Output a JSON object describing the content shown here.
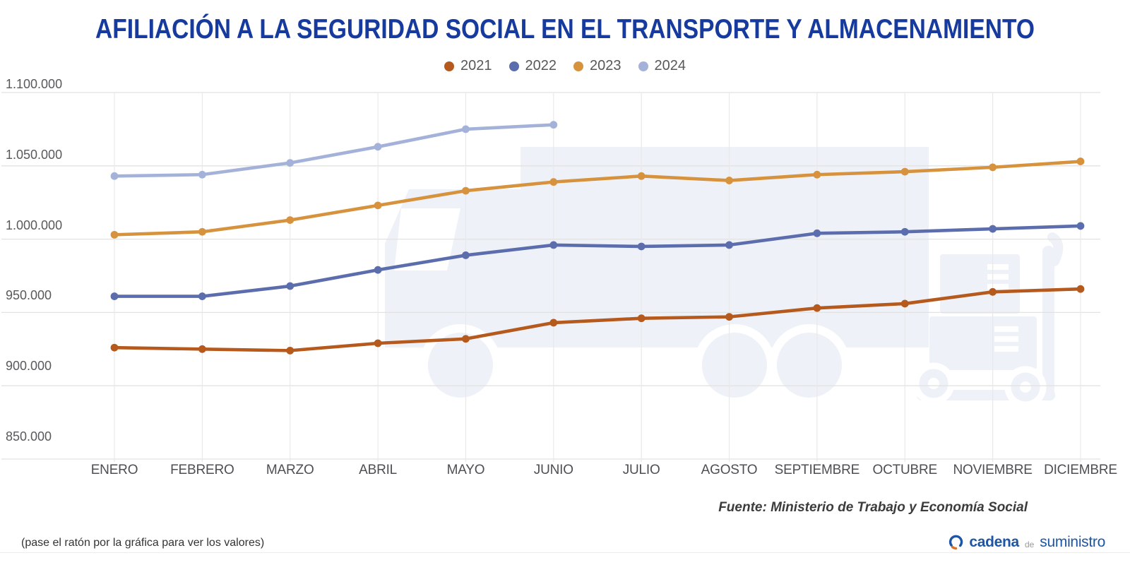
{
  "title": "AFILIACIÓN A LA SEGURIDAD SOCIAL EN EL TRANSPORTE Y ALMACENAMIENTO",
  "chart_data": {
    "type": "line",
    "title": "AFILIACIÓN A LA SEGURIDAD SOCIAL EN EL TRANSPORTE Y ALMACENAMIENTO",
    "categories": [
      "ENERO",
      "FEBRERO",
      "MARZO",
      "ABRIL",
      "MAYO",
      "JUNIO",
      "JULIO",
      "AGOSTO",
      "SEPTIEMBRE",
      "OCTUBRE",
      "NOVIEMBRE",
      "DICIEMBRE"
    ],
    "series": [
      {
        "name": "2021",
        "color": "#b5591c",
        "values": [
          926000,
          925000,
          924000,
          929000,
          932000,
          943000,
          946000,
          947000,
          953000,
          956000,
          964000,
          966000
        ]
      },
      {
        "name": "2022",
        "color": "#5b6dad",
        "values": [
          961000,
          961000,
          968000,
          979000,
          989000,
          996000,
          995000,
          996000,
          1004000,
          1005000,
          1007000,
          1009000
        ]
      },
      {
        "name": "2023",
        "color": "#d6923c",
        "values": [
          1003000,
          1005000,
          1013000,
          1023000,
          1033000,
          1039000,
          1043000,
          1040000,
          1044000,
          1046000,
          1049000,
          1053000
        ]
      },
      {
        "name": "2024",
        "color": "#a4b2da",
        "values": [
          1043000,
          1044000,
          1052000,
          1063000,
          1075000,
          1078000
        ]
      }
    ],
    "ylim": [
      850000,
      1100000
    ],
    "yticks": {
      "values": [
        1100000,
        1050000,
        1000000,
        950000,
        900000,
        850000
      ],
      "labels": [
        "1.100.000",
        "1.050.000",
        "1.000.000",
        "950.000",
        "900.000",
        "850.000"
      ]
    },
    "grid": "both",
    "legend_position": "top",
    "xlabel": "",
    "ylabel": ""
  },
  "legend": [
    {
      "label": "2021",
      "color": "#b5591c"
    },
    {
      "label": "2022",
      "color": "#5b6dad"
    },
    {
      "label": "2023",
      "color": "#d6923c"
    },
    {
      "label": "2024",
      "color": "#a4b2da"
    }
  ],
  "footer": {
    "source": "Fuente: Ministerio de Trabajo y Economía Social",
    "hover_hint": "(pase el ratón por la gráfica para ver los valores)"
  },
  "logo": {
    "word1": "cadena",
    "word2": "de",
    "word3": "suministro"
  },
  "colors": {
    "title": "#163a9e",
    "grid_horizontal": "#e2e2e2",
    "grid_vertical": "#e9e9e9",
    "watermark": "#eef1f8",
    "axis_text": "#58595b"
  }
}
